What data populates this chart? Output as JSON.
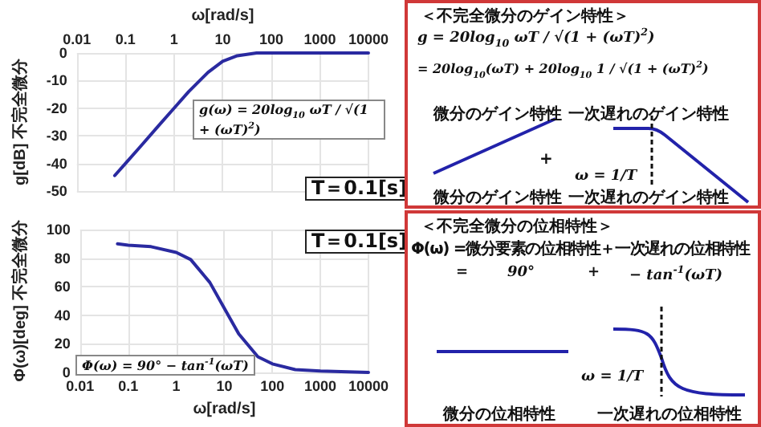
{
  "chart_data": [
    {
      "type": "line",
      "xlabel": "ω[rad/s]",
      "ylabel": "g[dB] 不完全微分",
      "xlim": [
        0.01,
        10000
      ],
      "xticks": [
        0.01,
        0.1,
        1,
        10,
        100,
        1000,
        10000
      ],
      "ylim": [
        -50,
        0
      ],
      "yticks": [
        -50,
        -40,
        -30,
        -20,
        -10,
        0
      ],
      "log": "x",
      "grid": true,
      "x": [
        0.06,
        0.1,
        0.2,
        0.5,
        1,
        2,
        5,
        10,
        20,
        50,
        100,
        1000,
        10000
      ],
      "series": [
        {
          "color": "#2a2aa0",
          "values": [
            -44.4,
            -40,
            -34,
            -26,
            -20,
            -14,
            -7,
            -3,
            -1,
            0,
            0,
            0,
            0
          ]
        }
      ],
      "annotations": [
        "g(ω) = 20log$_{10}$ ωT / √(1 + (ωT)$^{2}$)",
        "T＝0.1[s]"
      ]
    },
    {
      "type": "line",
      "xlabel": "ω[rad/s]",
      "ylabel": "Φ(ω)[deg] 不完全微分",
      "xlim": [
        0.01,
        10000
      ],
      "xticks": [
        0.01,
        0.1,
        1,
        10,
        100,
        1000,
        10000
      ],
      "ylim": [
        0,
        100
      ],
      "yticks": [
        0,
        20,
        40,
        60,
        80,
        100
      ],
      "log": "x",
      "grid": true,
      "x": [
        0.06,
        0.1,
        0.3,
        1,
        2,
        5,
        10,
        20,
        50,
        100,
        300,
        1000,
        10000
      ],
      "series": [
        {
          "color": "#2a2aa0",
          "values": [
            90,
            89,
            88,
            84,
            79,
            63,
            45,
            27,
            11,
            6,
            2,
            1,
            0
          ]
        }
      ],
      "annotations": [
        "T＝0.1[s]",
        "Φ(ω) = 90° − tan$^{-1}$(ωT)"
      ]
    },
    {
      "type": "other",
      "title": "＜不完全微分のゲイン特性＞",
      "annotations": [
        "g = 20log$_{10}$ ωT / √(1 + (ωT)$^{2}$)",
        "= 20log$_{10}$(ωT) + 20log$_{10}$ 1 / √(1 + (ωT)$^{2}$)",
        "微分のゲイン特性",
        "一次遅れのゲイン特性",
        "+",
        "ω = 1/T",
        "微分のゲイン特性",
        "一次遅れのゲイン特性"
      ]
    },
    {
      "type": "other",
      "title": "＜不完全微分の位相特性＞",
      "annotations": [
        "Φ(ω) =微分要素の位相特性＋一次遅れの位相特性",
        "=",
        "90°",
        "+",
        "− tan$^{-1}$(ωT)",
        "ω = 1/T",
        "微分の位相特性",
        "一次遅れの位相特性"
      ]
    }
  ]
}
